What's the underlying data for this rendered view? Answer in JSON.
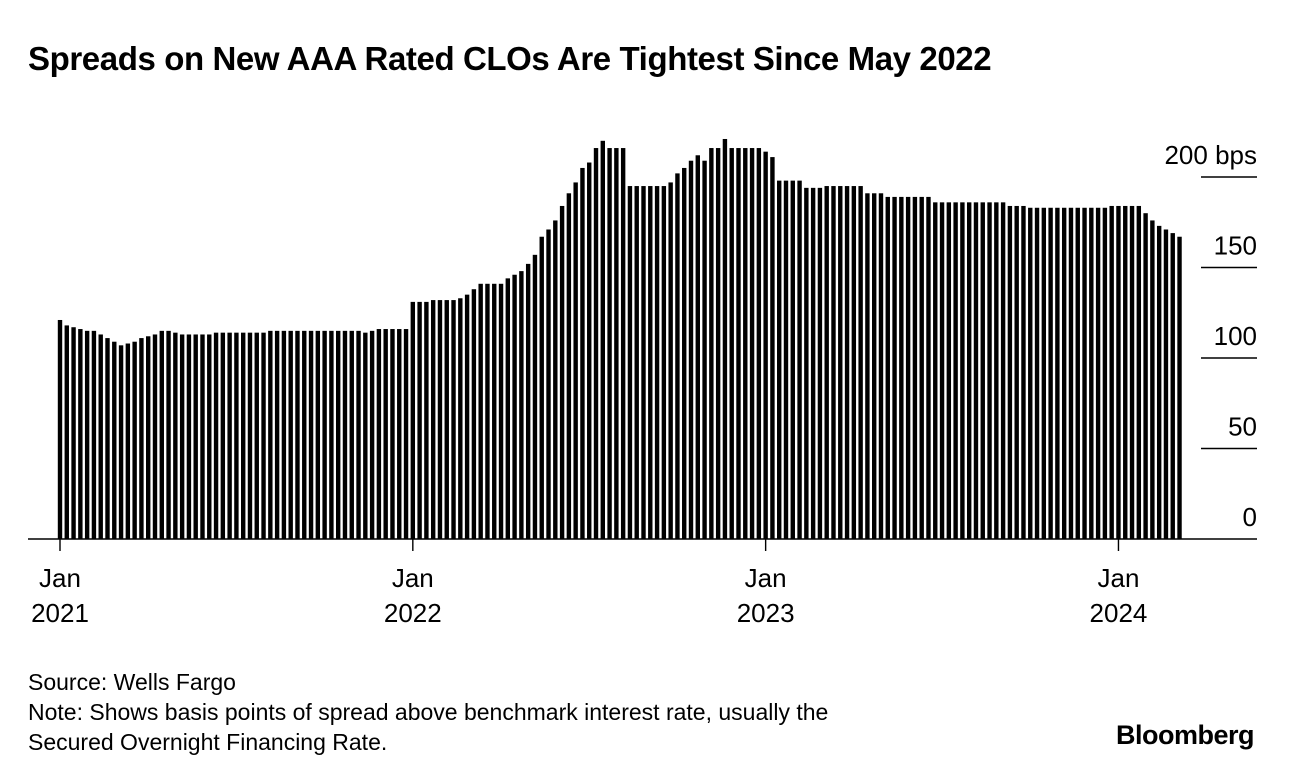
{
  "chart_data": {
    "type": "bar",
    "title": "Spreads on New AAA Rated CLOs Are Tightest Since May 2022",
    "ylabel": "bps",
    "ylim": [
      0,
      200
    ],
    "y_ticks": [
      {
        "value": 200,
        "label": "200 bps"
      },
      {
        "value": 150,
        "label": "150"
      },
      {
        "value": 100,
        "label": "100"
      },
      {
        "value": 50,
        "label": "50"
      },
      {
        "value": 0,
        "label": "0"
      }
    ],
    "x_ticks": [
      {
        "month": "Jan",
        "year": "2021",
        "week_index": 0
      },
      {
        "month": "Jan",
        "year": "2022",
        "week_index": 52
      },
      {
        "month": "Jan",
        "year": "2023",
        "week_index": 104
      },
      {
        "month": "Jan",
        "year": "2024",
        "week_index": 156
      }
    ],
    "frequency": "weekly",
    "x_start": "Jan 2021",
    "values": [
      121,
      118,
      117,
      116,
      115,
      115,
      113,
      111,
      109,
      107,
      108,
      109,
      111,
      112,
      113,
      115,
      115,
      114,
      113,
      113,
      113,
      113,
      113,
      114,
      114,
      114,
      114,
      114,
      114,
      114,
      114,
      115,
      115,
      115,
      115,
      115,
      115,
      115,
      115,
      115,
      115,
      115,
      115,
      115,
      115,
      114,
      115,
      116,
      116,
      116,
      116,
      116,
      131,
      131,
      131,
      132,
      132,
      132,
      132,
      133,
      135,
      138,
      141,
      141,
      141,
      141,
      144,
      146,
      148,
      152,
      157,
      167,
      171,
      176,
      184,
      191,
      197,
      205,
      208,
      216,
      220,
      216,
      216,
      216,
      195,
      195,
      195,
      195,
      195,
      195,
      197,
      202,
      205,
      209,
      212,
      209,
      216,
      216,
      221,
      216,
      216,
      216,
      216,
      216,
      214,
      211,
      198,
      198,
      198,
      198,
      194,
      194,
      194,
      195,
      195,
      195,
      195,
      195,
      195,
      191,
      191,
      191,
      189,
      189,
      189,
      189,
      189,
      189,
      189,
      186,
      186,
      186,
      186,
      186,
      186,
      186,
      186,
      186,
      186,
      186,
      184,
      184,
      184,
      183,
      183,
      183,
      183,
      183,
      183,
      183,
      183,
      183,
      183,
      183,
      183,
      184,
      184,
      184,
      184,
      184,
      180,
      176,
      173,
      171,
      169,
      167
    ]
  },
  "footer": {
    "source": "Source: Wells Fargo",
    "note_line1": "Note: Shows basis points of spread above benchmark interest rate, usually the",
    "note_line2": "Secured Overnight Financing Rate."
  },
  "brand": "Bloomberg"
}
